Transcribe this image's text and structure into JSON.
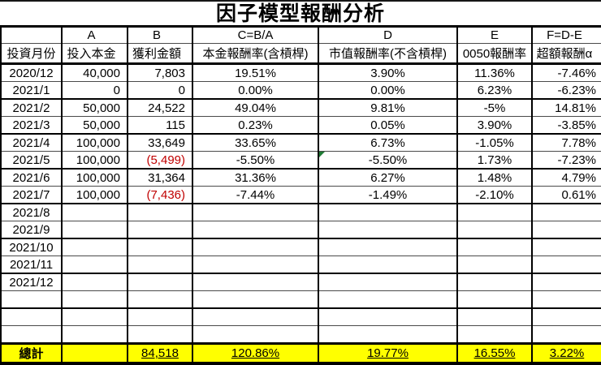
{
  "title": "因子模型報酬分析",
  "table": {
    "letters": [
      "",
      "A",
      "B",
      "C=B/A",
      "D",
      "E",
      "F=D-E"
    ],
    "headers": [
      "投資月份",
      "投入本金",
      "獲利金額",
      "本金報酬率(含槓桿)",
      "市值報酬率(不含槓桿)",
      "0050報酬率",
      "超額報酬α"
    ],
    "rows": [
      {
        "cells": [
          "2020/12",
          "40,000",
          "7,803",
          "19.51%",
          "3.90%",
          "11.36%",
          "-7.46%"
        ],
        "profit_negative": false,
        "d_error_flag": false
      },
      {
        "cells": [
          "2021/1",
          "0",
          "0",
          "0.00%",
          "0.00%",
          "6.23%",
          "-6.23%"
        ],
        "profit_negative": false,
        "d_error_flag": false
      },
      {
        "cells": [
          "2021/2",
          "50,000",
          "24,522",
          "49.04%",
          "9.81%",
          "-5%",
          "14.81%"
        ],
        "profit_negative": false,
        "d_error_flag": false
      },
      {
        "cells": [
          "2021/3",
          "50,000",
          "115",
          "0.23%",
          "0.05%",
          "3.90%",
          "-3.85%"
        ],
        "profit_negative": false,
        "d_error_flag": false
      },
      {
        "cells": [
          "2021/4",
          "100,000",
          "33,649",
          "33.65%",
          "6.73%",
          "-1.05%",
          "7.78%"
        ],
        "profit_negative": false,
        "d_error_flag": false
      },
      {
        "cells": [
          "2021/5",
          "100,000",
          "(5,499)",
          "-5.50%",
          "-5.50%",
          "1.73%",
          "-7.23%"
        ],
        "profit_negative": true,
        "d_error_flag": true
      },
      {
        "cells": [
          "2021/6",
          "100,000",
          "31,364",
          "31.36%",
          "6.27%",
          "1.48%",
          "4.79%"
        ],
        "profit_negative": false,
        "d_error_flag": false
      },
      {
        "cells": [
          "2021/7",
          "100,000",
          "(7,436)",
          "-7.44%",
          "-1.49%",
          "-2.10%",
          "0.61%"
        ],
        "profit_negative": true,
        "d_error_flag": false
      },
      {
        "cells": [
          "2021/8",
          "",
          "",
          "",
          "",
          "",
          ""
        ],
        "profit_negative": false,
        "d_error_flag": false
      },
      {
        "cells": [
          "2021/9",
          "",
          "",
          "",
          "",
          "",
          ""
        ],
        "profit_negative": false,
        "d_error_flag": false
      },
      {
        "cells": [
          "2021/10",
          "",
          "",
          "",
          "",
          "",
          ""
        ],
        "profit_negative": false,
        "d_error_flag": false
      },
      {
        "cells": [
          "2021/11",
          "",
          "",
          "",
          "",
          "",
          ""
        ],
        "profit_negative": false,
        "d_error_flag": false
      },
      {
        "cells": [
          "2021/12",
          "",
          "",
          "",
          "",
          "",
          ""
        ],
        "profit_negative": false,
        "d_error_flag": false
      },
      {
        "cells": [
          "",
          "",
          "",
          "",
          "",
          "",
          ""
        ],
        "profit_negative": false,
        "d_error_flag": false
      },
      {
        "cells": [
          "",
          "",
          "",
          "",
          "",
          "",
          ""
        ],
        "profit_negative": false,
        "d_error_flag": false
      },
      {
        "cells": [
          "",
          "",
          "",
          "",
          "",
          "",
          ""
        ],
        "profit_negative": false,
        "d_error_flag": false
      }
    ],
    "total": {
      "cells": [
        "總計",
        "",
        "84,518",
        "120.86%",
        "19.77%",
        "16.55%",
        "3.22%"
      ]
    }
  },
  "colors": {
    "negative_red": "#C00000",
    "total_highlight": "#FFFF00",
    "error_flag_green": "#1E7B34",
    "border_black": "#000000"
  }
}
